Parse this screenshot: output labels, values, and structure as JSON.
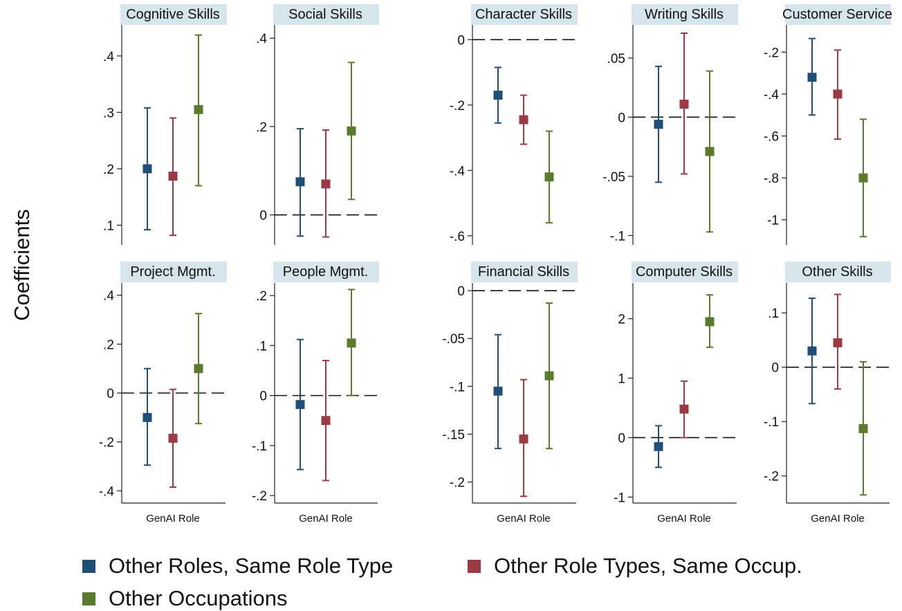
{
  "chart_data": {
    "type": "scatter",
    "ylabel": "Coefficients",
    "xlabel": "GenAI Role",
    "colors": {
      "Other Roles, Same Role Type": "#1f4e79",
      "Other Role Types, Same Occup.": "#9b3a44",
      "Other Occupations": "#5a7a2e"
    },
    "legend": {
      "placement": "bottom",
      "entries": [
        "Other Roles, Same Role Type",
        "Other Role Types, Same Occup.",
        "Other Occupations"
      ]
    },
    "panels": [
      {
        "title": "Cognitive Skills",
        "ylim": [
          0.065,
          0.455
        ],
        "ticks": [
          0.1,
          0.2,
          0.3,
          0.4
        ],
        "tick_labels": [
          ".1",
          ".2",
          ".3",
          ".4"
        ],
        "zero_line": false,
        "series": [
          {
            "name": "Other Roles, Same Role Type",
            "estimate": 0.2,
            "ci": [
              0.092,
              0.308
            ]
          },
          {
            "name": "Other Role Types, Same Occup.",
            "estimate": 0.187,
            "ci": [
              0.082,
              0.29
            ]
          },
          {
            "name": "Other Occupations",
            "estimate": 0.305,
            "ci": [
              0.17,
              0.437
            ]
          }
        ]
      },
      {
        "title": "Social Skills",
        "ylim": [
          -0.068,
          0.43
        ],
        "ticks": [
          0,
          0.2,
          0.4
        ],
        "tick_labels": [
          "0",
          ".2",
          ".4"
        ],
        "zero_line": true,
        "series": [
          {
            "name": "Other Roles, Same Role Type",
            "estimate": 0.075,
            "ci": [
              -0.048,
              0.195
            ]
          },
          {
            "name": "Other Role Types, Same Occup.",
            "estimate": 0.07,
            "ci": [
              -0.05,
              0.192
            ]
          },
          {
            "name": "Other Occupations",
            "estimate": 0.19,
            "ci": [
              0.035,
              0.345
            ]
          }
        ]
      },
      {
        "title": "Character Skills",
        "ylim": [
          -0.628,
          0.045
        ],
        "ticks": [
          -0.6,
          -0.4,
          -0.2,
          0
        ],
        "tick_labels": [
          "-.6",
          "-.4",
          "-.2",
          "0"
        ],
        "zero_line": true,
        "series": [
          {
            "name": "Other Roles, Same Role Type",
            "estimate": -0.17,
            "ci": [
              -0.255,
              -0.085
            ]
          },
          {
            "name": "Other Role Types, Same Occup.",
            "estimate": -0.245,
            "ci": [
              -0.32,
              -0.17
            ]
          },
          {
            "name": "Other Occupations",
            "estimate": -0.42,
            "ci": [
              -0.56,
              -0.28
            ]
          }
        ]
      },
      {
        "title": "Writing Skills",
        "ylim": [
          -0.108,
          0.078
        ],
        "ticks": [
          -0.1,
          -0.05,
          0,
          0.05
        ],
        "tick_labels": [
          "-.1",
          "-.05",
          "0",
          ".05"
        ],
        "zero_line": true,
        "series": [
          {
            "name": "Other Roles, Same Role Type",
            "estimate": -0.006,
            "ci": [
              -0.055,
              0.043
            ]
          },
          {
            "name": "Other Role Types, Same Occup.",
            "estimate": 0.011,
            "ci": [
              -0.048,
              0.071
            ]
          },
          {
            "name": "Other Occupations",
            "estimate": -0.029,
            "ci": [
              -0.097,
              0.039
            ]
          }
        ]
      },
      {
        "title": "Customer Service",
        "ylim": [
          -1.12,
          -0.07
        ],
        "ticks": [
          -1,
          -0.8,
          -0.6,
          -0.4,
          -0.2
        ],
        "tick_labels": [
          "-1",
          "-.8",
          "-.6",
          "-.4",
          "-.2"
        ],
        "zero_line": false,
        "series": [
          {
            "name": "Other Roles, Same Role Type",
            "estimate": -0.32,
            "ci": [
              -0.5,
              -0.135
            ]
          },
          {
            "name": "Other Role Types, Same Occup.",
            "estimate": -0.4,
            "ci": [
              -0.615,
              -0.19
            ]
          },
          {
            "name": "Other Occupations",
            "estimate": -0.8,
            "ci": [
              -1.08,
              -0.52
            ]
          }
        ]
      },
      {
        "title": "Project Mgmt.",
        "ylim": [
          -0.45,
          0.45
        ],
        "ticks": [
          -0.4,
          -0.2,
          0,
          0.2,
          0.4
        ],
        "tick_labels": [
          "-.4",
          "-.2",
          "0",
          ".2",
          ".4"
        ],
        "zero_line": true,
        "series": [
          {
            "name": "Other Roles, Same Role Type",
            "estimate": -0.1,
            "ci": [
              -0.295,
              0.1
            ]
          },
          {
            "name": "Other Role Types, Same Occup.",
            "estimate": -0.185,
            "ci": [
              -0.385,
              0.015
            ]
          },
          {
            "name": "Other Occupations",
            "estimate": 0.1,
            "ci": [
              -0.125,
              0.325
            ]
          }
        ]
      },
      {
        "title": "People Mgmt.",
        "ylim": [
          -0.215,
          0.225
        ],
        "ticks": [
          -0.2,
          -0.1,
          0,
          0.1,
          0.2
        ],
        "tick_labels": [
          "-.2",
          "-.1",
          "0",
          ".1",
          ".2"
        ],
        "zero_line": true,
        "series": [
          {
            "name": "Other Roles, Same Role Type",
            "estimate": -0.018,
            "ci": [
              -0.148,
              0.112
            ]
          },
          {
            "name": "Other Role Types, Same Occup.",
            "estimate": -0.05,
            "ci": [
              -0.17,
              0.07
            ]
          },
          {
            "name": "Other Occupations",
            "estimate": 0.105,
            "ci": [
              0.0,
              0.212
            ]
          }
        ]
      },
      {
        "title": "Financial Skills",
        "ylim": [
          -0.222,
          0.008
        ],
        "ticks": [
          -0.2,
          -0.15,
          -0.1,
          -0.05,
          0
        ],
        "tick_labels": [
          "-.2",
          "-.15",
          "-.1",
          "-.05",
          "0"
        ],
        "zero_line": true,
        "series": [
          {
            "name": "Other Roles, Same Role Type",
            "estimate": -0.105,
            "ci": [
              -0.165,
              -0.046
            ]
          },
          {
            "name": "Other Role Types, Same Occup.",
            "estimate": -0.155,
            "ci": [
              -0.215,
              -0.093
            ]
          },
          {
            "name": "Other Occupations",
            "estimate": -0.089,
            "ci": [
              -0.165,
              -0.013
            ]
          }
        ]
      },
      {
        "title": "Computer Skills",
        "ylim": [
          -1.1,
          2.6
        ],
        "ticks": [
          -1,
          0,
          1,
          2
        ],
        "tick_labels": [
          "-1",
          "0",
          "1",
          "2"
        ],
        "zero_line": true,
        "series": [
          {
            "name": "Other Roles, Same Role Type",
            "estimate": -0.15,
            "ci": [
              -0.5,
              0.2
            ]
          },
          {
            "name": "Other Role Types, Same Occup.",
            "estimate": 0.48,
            "ci": [
              0.0,
              0.95
            ]
          },
          {
            "name": "Other Occupations",
            "estimate": 1.95,
            "ci": [
              1.52,
              2.4
            ]
          }
        ]
      },
      {
        "title": "Other Skills",
        "ylim": [
          -0.25,
          0.155
        ],
        "ticks": [
          -0.2,
          -0.1,
          0,
          0.1
        ],
        "tick_labels": [
          "-.2",
          "-.1",
          "0",
          ".1"
        ],
        "zero_line": true,
        "series": [
          {
            "name": "Other Roles, Same Role Type",
            "estimate": 0.03,
            "ci": [
              -0.067,
              0.127
            ]
          },
          {
            "name": "Other Role Types, Same Occup.",
            "estimate": 0.045,
            "ci": [
              -0.04,
              0.134
            ]
          },
          {
            "name": "Other Occupations",
            "estimate": -0.113,
            "ci": [
              -0.235,
              0.01
            ]
          }
        ]
      }
    ]
  }
}
